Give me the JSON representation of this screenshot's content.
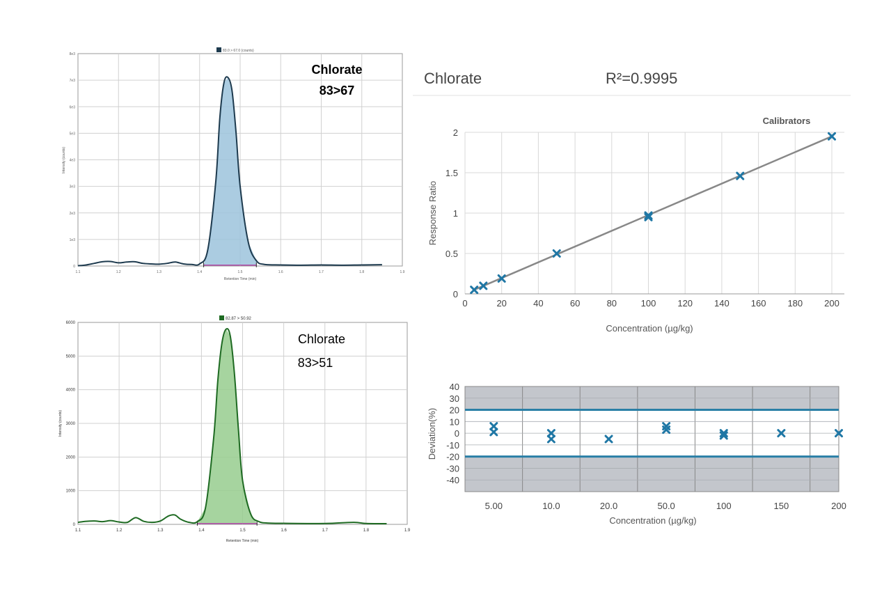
{
  "chart_data": [
    {
      "id": "chrom-83-67",
      "type": "area",
      "legend": "83.0 > 67.0 (counts)",
      "title": "Chlorate",
      "subtitle": "83>67",
      "xlabel": "Retention Time (min)",
      "ylabel": "Intensity (counts)",
      "xlim": [
        1.1,
        1.9
      ],
      "ylim": [
        0,
        8000
      ],
      "xticks": [
        "1.1",
        "1.2",
        "1.3",
        "1.4",
        "1.5",
        "1.6",
        "1.7",
        "1.8",
        "1.9"
      ],
      "yticks": [
        "0",
        "1e3",
        "2e3",
        "3e3",
        "4e3",
        "5e3",
        "6e3",
        "7e3",
        "8e3"
      ],
      "x": [
        1.1,
        1.12,
        1.14,
        1.16,
        1.18,
        1.2,
        1.22,
        1.24,
        1.26,
        1.28,
        1.3,
        1.32,
        1.34,
        1.36,
        1.38,
        1.4,
        1.42,
        1.44,
        1.45,
        1.46,
        1.47,
        1.48,
        1.49,
        1.5,
        1.52,
        1.54,
        1.56,
        1.6,
        1.65,
        1.7,
        1.75,
        1.8,
        1.85
      ],
      "y": [
        10,
        40,
        100,
        160,
        170,
        120,
        150,
        160,
        100,
        80,
        70,
        100,
        150,
        80,
        60,
        80,
        600,
        3200,
        5600,
        6900,
        7100,
        6600,
        5000,
        3000,
        900,
        200,
        60,
        40,
        30,
        40,
        30,
        40,
        50
      ],
      "integration_start": 1.41,
      "integration_end": 1.54,
      "grid": true
    },
    {
      "id": "chrom-83-51",
      "type": "area",
      "legend": "82.87 > 50.92",
      "title": "Chlorate",
      "subtitle": "83>51",
      "xlabel": "Retention Time (min)",
      "ylabel": "Intensity (counts)",
      "xlim": [
        1.1,
        1.9
      ],
      "ylim": [
        0,
        6000
      ],
      "xticks": [
        "1.1",
        "1.2",
        "1.3",
        "1.4",
        "1.5",
        "1.6",
        "1.7",
        "1.8",
        "1.9"
      ],
      "yticks": [
        "0",
        "1000",
        "2000",
        "3000",
        "4000",
        "5000",
        "6000"
      ],
      "x": [
        1.1,
        1.12,
        1.14,
        1.16,
        1.18,
        1.2,
        1.22,
        1.24,
        1.26,
        1.28,
        1.3,
        1.32,
        1.335,
        1.35,
        1.37,
        1.39,
        1.41,
        1.43,
        1.44,
        1.45,
        1.46,
        1.47,
        1.48,
        1.49,
        1.5,
        1.52,
        1.54,
        1.56,
        1.6,
        1.7,
        1.77,
        1.8,
        1.85
      ],
      "y": [
        60,
        90,
        100,
        80,
        110,
        70,
        60,
        200,
        90,
        60,
        100,
        250,
        280,
        150,
        60,
        80,
        500,
        2600,
        4300,
        5400,
        5800,
        5600,
        4500,
        2800,
        1300,
        300,
        80,
        40,
        30,
        25,
        60,
        25,
        20
      ],
      "integration_start": 1.39,
      "integration_end": 1.535,
      "grid": true
    },
    {
      "id": "calibration",
      "type": "scatter",
      "title": "Chlorate",
      "r2": "R²=0.9995",
      "legend": "Calibrators",
      "xlabel": "Concentration (µg/kg)",
      "ylabel": "Response Ratio",
      "xlim": [
        0,
        200
      ],
      "ylim": [
        0,
        2
      ],
      "xticks": [
        "0",
        "20",
        "40",
        "60",
        "80",
        "100",
        "120",
        "140",
        "160",
        "180",
        "200"
      ],
      "yticks": [
        "0",
        "0.5",
        "1",
        "1.5",
        "2"
      ],
      "x": [
        5,
        10,
        20,
        50,
        100,
        100,
        150,
        200
      ],
      "y": [
        0.05,
        0.1,
        0.19,
        0.5,
        0.97,
        0.95,
        1.46,
        1.95
      ],
      "fit_line": {
        "x": [
          5,
          200
        ],
        "y": [
          0.05,
          1.95
        ]
      },
      "grid": true
    },
    {
      "id": "deviation",
      "type": "scatter",
      "xlabel": "Concentration (µg/kg)",
      "ylabel": "Deviation(%)",
      "ylim": [
        -50,
        40
      ],
      "yticks": [
        "40",
        "30",
        "20",
        "10",
        "0",
        "-10",
        "-20",
        "-30",
        "-40"
      ],
      "categories": [
        "5.00",
        "10.0",
        "20.0",
        "50.0",
        "100",
        "150",
        "200"
      ],
      "points": [
        {
          "category": "5.00",
          "y": 6
        },
        {
          "category": "5.00",
          "y": 1
        },
        {
          "category": "10.0",
          "y": 0
        },
        {
          "category": "10.0",
          "y": -5
        },
        {
          "category": "20.0",
          "y": -5
        },
        {
          "category": "50.0",
          "y": 6
        },
        {
          "category": "50.0",
          "y": 3
        },
        {
          "category": "100",
          "y": 0
        },
        {
          "category": "100",
          "y": -2
        },
        {
          "category": "150",
          "y": 0
        },
        {
          "category": "200",
          "y": 0
        }
      ],
      "limits": [
        20,
        -20
      ],
      "grid": true
    }
  ],
  "colors": {
    "chrom1_line": "#1d3a4e",
    "chrom1_fill": "#9cc3dc",
    "chrom2_line": "#1e6a22",
    "chrom2_fill": "#97cc8e",
    "baseline": "#b04aa8",
    "marker": "#1f77a5",
    "fit_line": "#888888",
    "limit_line": "#2a7fa6",
    "band": "#c3c6cc",
    "grid": "#d0d0d0"
  }
}
